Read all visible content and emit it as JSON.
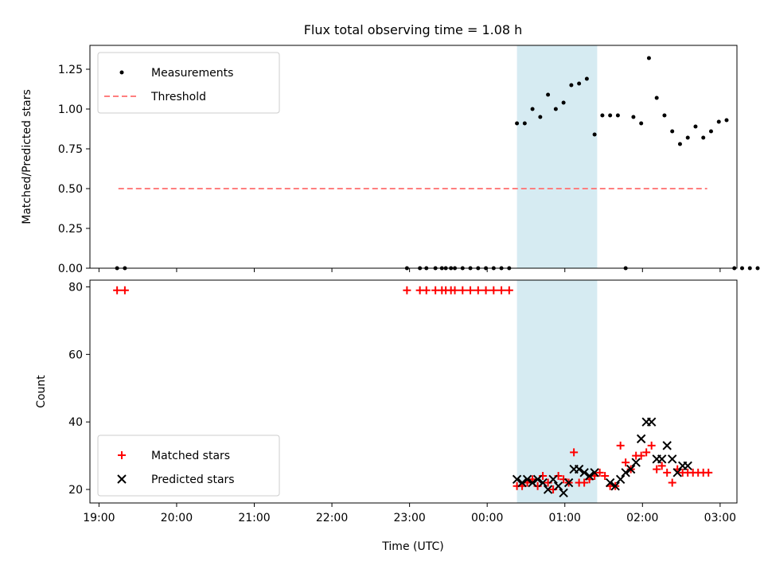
{
  "chart_data": [
    {
      "type": "scatter",
      "title": "Flux total observing time = 1.08 h",
      "ylabel": "Matched/Predicted stars",
      "xlabel": "",
      "ylim": [
        0,
        1.4
      ],
      "yticks": [
        "0.00",
        "0.25",
        "0.50",
        "0.75",
        "1.00",
        "1.25"
      ],
      "ytick_values": [
        0,
        0.25,
        0.5,
        0.75,
        1.0,
        1.25
      ],
      "shaded_span": {
        "start": "00:23",
        "end": "01:25",
        "color": "#add8e6"
      },
      "legend_position": "upper-left",
      "series": [
        {
          "name": "Measurements",
          "marker": "dot",
          "color": "#000000",
          "x": [
            "19:14",
            "19:20",
            "22:58",
            "23:08",
            "23:13",
            "23:20",
            "23:25",
            "23:28",
            "23:32",
            "23:35",
            "23:41",
            "23:47",
            "23:53",
            "23:59",
            "00:05",
            "00:11",
            "00:17",
            "00:23",
            "00:29",
            "00:35",
            "00:41",
            "00:47",
            "00:53",
            "00:59",
            "01:05",
            "01:11",
            "01:17",
            "01:23",
            "01:29",
            "01:35",
            "01:41",
            "01:47",
            "01:53",
            "01:59",
            "02:05",
            "02:11",
            "02:17",
            "02:23",
            "02:29",
            "02:35",
            "02:41",
            "02:47",
            "02:53",
            "02:59",
            "03:05",
            "03:11",
            "03:17",
            "03:23",
            "03:29"
          ],
          "y": [
            0,
            0,
            0,
            0,
            0,
            0,
            0,
            0,
            0,
            0,
            0,
            0,
            0,
            0,
            0,
            0,
            0,
            0.91,
            0.91,
            1.0,
            0.95,
            1.09,
            1.0,
            1.04,
            1.15,
            1.16,
            1.19,
            0.84,
            0.96,
            0.96,
            0.96,
            0,
            0.95,
            0.91,
            1.32,
            1.07,
            0.96,
            0.86,
            0.78,
            0.82,
            0.89,
            0.82,
            0.86,
            0.92,
            0.93,
            0,
            0,
            0,
            0
          ]
        },
        {
          "name": "Threshold",
          "line": "dashed",
          "color": "#ff7f7f",
          "x": [
            "19:15",
            "02:50"
          ],
          "y": [
            0.5,
            0.5
          ]
        }
      ]
    },
    {
      "type": "scatter",
      "title": "",
      "ylabel": "Count",
      "xlabel": "Time (UTC)",
      "ylim": [
        16,
        82
      ],
      "yticks": [
        "20",
        "40",
        "60",
        "80"
      ],
      "ytick_values": [
        20,
        40,
        60,
        80
      ],
      "xlim": [
        "18:53",
        "03:13"
      ],
      "xticks": [
        "19:00",
        "20:00",
        "21:00",
        "22:00",
        "23:00",
        "00:00",
        "01:00",
        "02:00",
        "03:00"
      ],
      "shaded_span": {
        "start": "00:23",
        "end": "01:25",
        "color": "#add8e6"
      },
      "legend_position": "lower-left",
      "series": [
        {
          "name": "Matched stars",
          "marker": "plus",
          "color": "#ff0000",
          "x": [
            "19:14",
            "19:20",
            "22:58",
            "23:08",
            "23:13",
            "23:20",
            "23:25",
            "23:28",
            "23:32",
            "23:35",
            "23:41",
            "23:47",
            "23:53",
            "23:59",
            "00:05",
            "00:11",
            "00:17",
            "00:23",
            "00:27",
            "00:31",
            "00:35",
            "00:39",
            "00:43",
            "00:47",
            "00:51",
            "00:55",
            "00:59",
            "01:03",
            "01:07",
            "01:11",
            "01:15",
            "01:19",
            "01:23",
            "01:27",
            "01:31",
            "01:35",
            "01:39",
            "01:43",
            "01:47",
            "01:51",
            "01:55",
            "01:59",
            "02:03",
            "02:07",
            "02:11",
            "02:15",
            "02:19",
            "02:23",
            "02:27",
            "02:31",
            "02:35",
            "02:39",
            "02:43",
            "02:47",
            "02:51"
          ],
          "y": [
            79,
            79,
            79,
            79,
            79,
            79,
            79,
            79,
            79,
            79,
            79,
            79,
            79,
            79,
            79,
            79,
            79,
            21,
            21,
            22,
            23,
            21,
            24,
            22,
            20,
            24,
            23,
            22,
            31,
            22,
            22,
            23,
            24,
            25,
            24,
            21,
            21,
            33,
            28,
            26,
            30,
            30,
            31,
            33,
            26,
            27,
            25,
            22,
            26,
            25,
            25,
            25,
            25,
            25,
            25
          ]
        },
        {
          "name": "Predicted stars",
          "marker": "x",
          "color": "#000000",
          "x": [
            "00:23",
            "00:27",
            "00:31",
            "00:35",
            "00:39",
            "00:43",
            "00:47",
            "00:51",
            "00:55",
            "00:59",
            "01:03",
            "01:07",
            "01:11",
            "01:15",
            "01:19",
            "01:23",
            "01:35",
            "01:39",
            "01:43",
            "01:47",
            "01:51",
            "01:55",
            "01:59",
            "02:03",
            "02:07",
            "02:11",
            "02:15",
            "02:19",
            "02:23",
            "02:27",
            "02:31",
            "02:35"
          ],
          "y": [
            23,
            22,
            23,
            22,
            23,
            22,
            20,
            23,
            21,
            19,
            22,
            26,
            26,
            25,
            24,
            25,
            22,
            21,
            23,
            25,
            26,
            28,
            35,
            40,
            40,
            29,
            29,
            33,
            29,
            25,
            27,
            27
          ]
        }
      ]
    }
  ]
}
